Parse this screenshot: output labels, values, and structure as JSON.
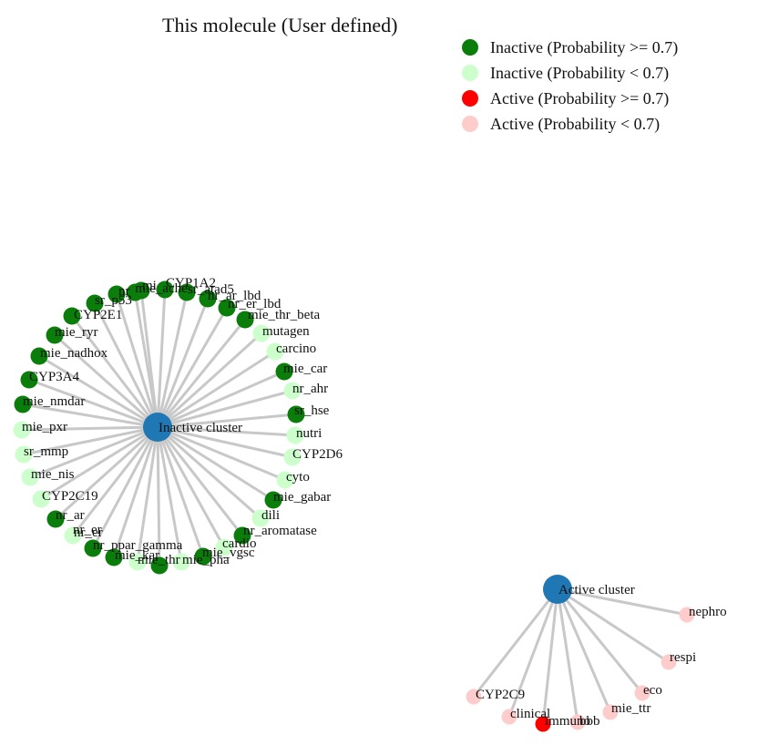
{
  "title": "This molecule (User defined)",
  "colors": {
    "cluster": "#1f77b4",
    "inactive_strong": "#0a7d0a",
    "inactive_weak": "#ccffcc",
    "active_strong": "#ff0000",
    "active_weak": "#ffcccc",
    "edge": "#c8c8c8"
  },
  "legend": [
    {
      "key": "inactive_strong",
      "label": "Inactive (Probability >= 0.7)"
    },
    {
      "key": "inactive_weak",
      "label": "Inactive (Probability < 0.7)"
    },
    {
      "key": "active_strong",
      "label": "Active (Probability >= 0.7)"
    },
    {
      "key": "active_weak",
      "label": "Active (Probability < 0.7)"
    }
  ],
  "clusters": [
    {
      "id": "inactive",
      "label": "Inactive cluster",
      "nodes": [
        {
          "label": "mie_thr_beta",
          "cls": "inactive_strong"
        },
        {
          "label": "mutagen",
          "cls": "inactive_weak"
        },
        {
          "label": "carcino",
          "cls": "inactive_weak"
        },
        {
          "label": "mie_car",
          "cls": "inactive_strong"
        },
        {
          "label": "nr_ahr",
          "cls": "inactive_weak"
        },
        {
          "label": "sr_hse",
          "cls": "inactive_strong"
        },
        {
          "label": "nutri",
          "cls": "inactive_weak"
        },
        {
          "label": "CYP2D6",
          "cls": "inactive_weak"
        },
        {
          "label": "cyto",
          "cls": "inactive_weak"
        },
        {
          "label": "mie_gabar",
          "cls": "inactive_strong"
        },
        {
          "label": "dili",
          "cls": "inactive_weak"
        },
        {
          "label": "nr_aromatase",
          "cls": "inactive_strong"
        },
        {
          "label": "cardio",
          "cls": "inactive_weak"
        },
        {
          "label": "mie_vgsc",
          "cls": "inactive_strong"
        },
        {
          "label": "mie_pha",
          "cls": "inactive_weak"
        },
        {
          "label": "mie_thr",
          "cls": "inactive_strong"
        },
        {
          "label": "mie_kar",
          "cls": "inactive_weak"
        },
        {
          "label": "nr_ppar_gamma",
          "cls": "inactive_strong"
        },
        {
          "label": "nr_er",
          "cls": "inactive_strong"
        },
        {
          "label": "nr_er",
          "cls": "inactive_weak"
        },
        {
          "label": "nr_ar",
          "cls": "inactive_strong"
        },
        {
          "label": "CYP2C19",
          "cls": "inactive_weak"
        },
        {
          "label": "mie_nis",
          "cls": "inactive_weak"
        },
        {
          "label": "sr_mmp",
          "cls": "inactive_weak"
        },
        {
          "label": "mie_pxr",
          "cls": "inactive_weak"
        },
        {
          "label": "mie_nmdar",
          "cls": "inactive_strong"
        },
        {
          "label": "CYP3A4",
          "cls": "inactive_strong"
        },
        {
          "label": "mie_nadhox",
          "cls": "inactive_strong"
        },
        {
          "label": "mie_ryr",
          "cls": "inactive_strong"
        },
        {
          "label": "CYP2E1",
          "cls": "inactive_strong"
        },
        {
          "label": "sr_p53",
          "cls": "inactive_strong"
        },
        {
          "label": "nr",
          "cls": "inactive_strong"
        },
        {
          "label": "mi",
          "cls": "inactive_strong"
        },
        {
          "label": "CYP1A2",
          "cls": "inactive_strong"
        },
        {
          "label": "sr_atad5",
          "cls": "inactive_strong"
        },
        {
          "label": "nr_ar_lbd",
          "cls": "inactive_strong"
        },
        {
          "label": "nr_er_lbd",
          "cls": "inactive_strong"
        },
        {
          "label": "mie_ache",
          "cls": "inactive_strong"
        }
      ]
    },
    {
      "id": "active",
      "label": "Active cluster",
      "nodes": [
        {
          "label": "nephro",
          "cls": "active_weak"
        },
        {
          "label": "respi",
          "cls": "active_weak"
        },
        {
          "label": "eco",
          "cls": "active_weak"
        },
        {
          "label": "mie_ttr",
          "cls": "active_weak"
        },
        {
          "label": "bbb",
          "cls": "active_weak"
        },
        {
          "label": "immuno",
          "cls": "active_strong"
        },
        {
          "label": "clinical",
          "cls": "active_weak"
        },
        {
          "label": "CYP2C9",
          "cls": "active_weak"
        }
      ]
    }
  ]
}
